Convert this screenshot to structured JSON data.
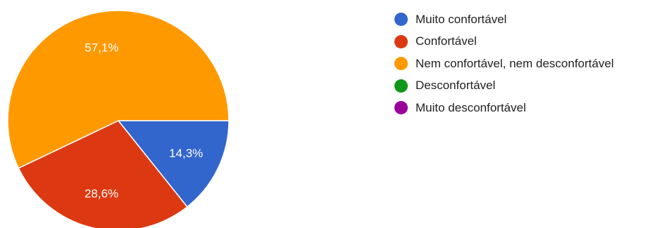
{
  "chart_data": {
    "type": "pie",
    "title": "",
    "start_angle_deg": 90,
    "direction": "clockwise",
    "legend_position": "right",
    "slices": [
      {
        "label": "Muito confortável",
        "value": 14.3,
        "display": "14,3%",
        "color": "#3366cc"
      },
      {
        "label": "Confortável",
        "value": 28.6,
        "display": "28,6%",
        "color": "#dc3912"
      },
      {
        "label": "Nem confortável, nem desconfortável",
        "value": 57.1,
        "display": "57,1%",
        "color": "#ff9900"
      },
      {
        "label": "Desconfortável",
        "value": 0,
        "display": "",
        "color": "#109618"
      },
      {
        "label": "Muito desconfortável",
        "value": 0,
        "display": "",
        "color": "#990099"
      }
    ]
  }
}
